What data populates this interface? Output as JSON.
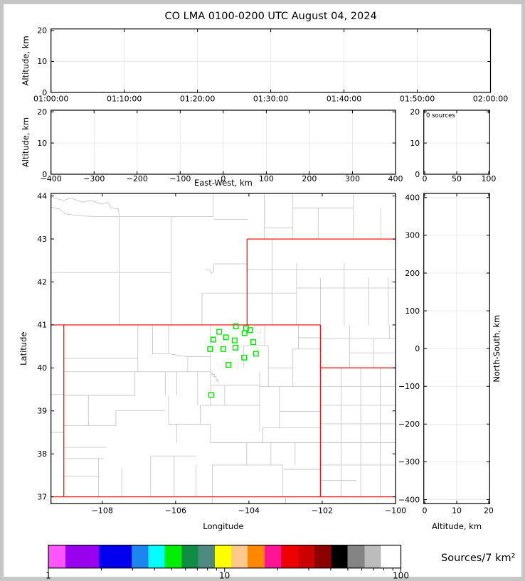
{
  "title": "CO LMA 0100-0200 UTC August 04, 2024",
  "colors": {
    "background": "#ffffff",
    "frame": "#c6c6c6",
    "axis": "#000000",
    "grid": "#e8e8e8",
    "county_line": "#c9c9c9",
    "state_line": "#ff1111",
    "marker": "#00e400"
  },
  "panels": {
    "time_height": {
      "ylabel": "Altitude, km",
      "xtick_vals": [
        0,
        1,
        2,
        3,
        4,
        5,
        6
      ],
      "xtick_labels": [
        "01:00:00",
        "01:10:00",
        "01:20:00",
        "01:30:00",
        "01:40:00",
        "01:50:00",
        "02:00:00"
      ],
      "xlim": [
        0,
        6
      ],
      "ytick_vals": [
        0,
        10,
        20
      ],
      "ytick_labels": [
        "0",
        "10",
        "20"
      ],
      "ylim": [
        0,
        20.5
      ],
      "xgrid": [
        1,
        2,
        3,
        4,
        5
      ],
      "ygrid": [
        10
      ]
    },
    "ew_height": {
      "xlabel": "East-West, km",
      "ylabel": "Altitude, km",
      "xtick_vals": [
        -400,
        -300,
        -200,
        -100,
        0,
        100,
        200,
        300,
        400
      ],
      "xtick_labels": [
        "−400",
        "−300",
        "−200",
        "−100",
        "0",
        "100",
        "200",
        "300",
        "400"
      ],
      "xlim": [
        -400,
        400
      ],
      "ytick_vals": [
        0,
        10,
        20
      ],
      "ytick_labels": [
        "0",
        "10",
        "20"
      ],
      "ylim": [
        0,
        20.5
      ],
      "xgrid": [
        -300,
        -200,
        -100,
        0,
        100,
        200,
        300
      ],
      "ygrid": [
        10
      ]
    },
    "hist": {
      "annotation": "0 sources",
      "xtick_vals": [
        0,
        50,
        100
      ],
      "xtick_labels": [
        "0",
        "50",
        "100"
      ],
      "xlim": [
        -1.5,
        101.5
      ],
      "ytick_vals": [
        0,
        10,
        20
      ],
      "ytick_labels": [
        "0",
        "10",
        "20"
      ],
      "ylim": [
        0,
        20.5
      ],
      "xgrid": [
        50
      ],
      "ygrid": [
        10
      ]
    },
    "map": {
      "xlabel": "Longitude",
      "ylabel": "Latitude",
      "xtick_vals": [
        -108,
        -106,
        -104,
        -102,
        -100
      ],
      "xtick_labels": [
        "−108",
        "−106",
        "−104",
        "−102",
        "−100"
      ],
      "xlim": [
        -109.4,
        -100.0
      ],
      "ytick_vals": [
        37,
        38,
        39,
        40,
        41,
        42,
        43,
        44
      ],
      "ytick_labels": [
        "37",
        "38",
        "39",
        "40",
        "41",
        "42",
        "43",
        "44"
      ],
      "ylim": [
        36.84,
        44.06
      ],
      "xgrid": [],
      "ygrid": []
    },
    "ns_height": {
      "xlabel": "Altitude, km",
      "ylabel": "North-South, km",
      "xtick_vals": [
        0,
        10,
        20
      ],
      "xtick_labels": [
        "0",
        "10",
        "20"
      ],
      "xlim": [
        -0.3,
        20.3
      ],
      "ytick_vals": [
        400,
        300,
        200,
        100,
        0,
        -100,
        -200,
        -300,
        -400
      ],
      "ytick_labels": [
        "400",
        "300",
        "200",
        "100",
        "0",
        "−100",
        "−200",
        "−300",
        "−400"
      ],
      "ylim": [
        -411,
        411
      ],
      "xgrid": [
        10
      ],
      "ygrid": [
        -400,
        -300,
        -200,
        -100,
        0,
        100,
        200,
        300,
        400
      ]
    }
  },
  "chart_data": {
    "type": "scatter",
    "title": "CO LMA 0100-0200 UTC August 04, 2024",
    "note": "VHF lightning source density map; all time/altitude panels are empty (0 sources in histogram panel)",
    "map_xlabel": "Longitude",
    "map_ylabel": "Latitude",
    "map_xlim": [
      -109.4,
      -100.0
    ],
    "map_ylim": [
      36.84,
      44.06
    ],
    "sources_lonlat": [
      [
        -104.36,
        40.97
      ],
      [
        -104.08,
        40.92
      ],
      [
        -103.97,
        40.88
      ],
      [
        -104.12,
        40.81
      ],
      [
        -104.81,
        40.84
      ],
      [
        -104.63,
        40.71
      ],
      [
        -104.97,
        40.66
      ],
      [
        -104.39,
        40.64
      ],
      [
        -103.88,
        40.6
      ],
      [
        -105.06,
        40.44
      ],
      [
        -104.7,
        40.44
      ],
      [
        -104.37,
        40.47
      ],
      [
        -103.81,
        40.33
      ],
      [
        -104.13,
        40.24
      ],
      [
        -104.56,
        40.07
      ],
      [
        -105.03,
        39.37
      ]
    ]
  },
  "map_lines": {
    "state": [
      [
        -109.4,
        41.0,
        -102.05,
        41.0
      ],
      [
        -109.05,
        41.0,
        -109.05,
        37.0
      ],
      [
        -109.4,
        37.0,
        -100.0,
        37.0
      ],
      [
        -102.05,
        41.0,
        -102.05,
        37.0
      ],
      [
        -104.05,
        41.0,
        -104.05,
        43.0
      ],
      [
        -104.05,
        43.0,
        -100.0,
        43.0
      ],
      [
        -102.05,
        40.0,
        -100.0,
        40.0
      ]
    ],
    "county": [
      [
        -109.4,
        43.97,
        -109.05,
        43.9,
        -108.85,
        43.95,
        -108.55,
        43.86,
        -108.3,
        43.9,
        -108.05,
        43.81,
        -107.85,
        43.85,
        -107.75,
        43.72,
        -107.56,
        43.7,
        -107.54,
        43.52
      ],
      [
        -109.4,
        43.74,
        -109.18,
        43.7,
        -109.0,
        43.58,
        -108.6,
        43.54,
        -108.15,
        43.52,
        -107.54,
        43.52
      ],
      [
        -107.54,
        41.0,
        -107.54,
        43.52
      ],
      [
        -109.4,
        42.22,
        -106.12,
        42.22
      ],
      [
        -106.12,
        41.0,
        -106.12,
        43.52
      ],
      [
        -107.54,
        43.52,
        -104.97,
        43.52
      ],
      [
        -104.97,
        43.52,
        -104.97,
        44.06
      ],
      [
        -104.97,
        43.46,
        -104.05,
        43.46
      ],
      [
        -105.28,
        41.0,
        -105.28,
        41.74
      ],
      [
        -105.28,
        41.74,
        -102.7,
        41.74
      ],
      [
        -105.2,
        42.28,
        -105.06,
        42.28,
        -105.04,
        42.2,
        -104.96,
        42.24,
        -104.96,
        42.42,
        -104.05,
        42.42
      ],
      [
        -103.58,
        43.0,
        -103.58,
        44.06
      ],
      [
        -102.8,
        43.0,
        -102.8,
        44.06
      ],
      [
        -103.58,
        43.26,
        -102.8,
        43.26
      ],
      [
        -102.11,
        43.0,
        -102.11,
        43.72
      ],
      [
        -102.8,
        43.72,
        -101.15,
        43.72
      ],
      [
        -101.15,
        43.0,
        -101.15,
        44.06
      ],
      [
        -100.4,
        43.0,
        -100.4,
        43.72
      ],
      [
        -103.37,
        41.0,
        -103.37,
        43.0
      ],
      [
        -102.7,
        41.0,
        -102.7,
        42.44
      ],
      [
        -102.05,
        41.0,
        -102.05,
        42.09
      ],
      [
        -101.4,
        41.0,
        -101.4,
        42.44
      ],
      [
        -100.73,
        41.0,
        -100.73,
        42.09
      ],
      [
        -100.2,
        41.0,
        -100.2,
        42.09
      ],
      [
        -104.05,
        42.3,
        -100.0,
        42.3
      ],
      [
        -102.7,
        41.86,
        -100.0,
        41.86
      ],
      [
        -102.05,
        40.68,
        -100.0,
        40.68
      ],
      [
        -101.25,
        40.0,
        -101.25,
        41.0
      ],
      [
        -100.6,
        40.0,
        -100.6,
        40.68
      ],
      [
        -101.25,
        40.35,
        -100.0,
        40.35
      ],
      [
        -100.17,
        40.68,
        -100.17,
        41.0
      ],
      [
        -102.05,
        39.57,
        -100.0,
        39.57
      ],
      [
        -102.05,
        39.13,
        -100.0,
        39.13
      ],
      [
        -102.05,
        38.7,
        -100.0,
        38.7
      ],
      [
        -102.05,
        38.26,
        -100.0,
        38.26
      ],
      [
        -102.05,
        37.74,
        -100.0,
        37.74
      ],
      [
        -102.05,
        37.38,
        -101.07,
        37.38
      ],
      [
        -101.48,
        37.0,
        -101.48,
        40.0
      ],
      [
        -100.95,
        37.0,
        -100.95,
        40.0
      ],
      [
        -100.42,
        37.0,
        -100.42,
        40.0
      ],
      [
        -109.4,
        38.5,
        -109.05,
        38.5
      ],
      [
        -109.4,
        39.38,
        -109.05,
        39.38
      ],
      [
        -105.0,
        36.84,
        -105.0,
        37.0
      ],
      [
        -103.0,
        36.84,
        -103.0,
        37.0
      ],
      [
        -107.03,
        39.91,
        -107.03,
        41.0
      ],
      [
        -109.05,
        40.22,
        -107.03,
        40.22
      ],
      [
        -109.05,
        39.91,
        -105.05,
        39.91
      ],
      [
        -106.63,
        40.33,
        -106.63,
        41.0
      ],
      [
        -106.19,
        40.33,
        -106.19,
        41.0
      ],
      [
        -106.63,
        40.33,
        -106.19,
        40.33
      ],
      [
        -106.19,
        40.33,
        -105.67,
        40.26
      ],
      [
        -105.67,
        40.26,
        -105.05,
        40.26
      ],
      [
        -105.67,
        39.91,
        -105.67,
        40.26
      ],
      [
        -105.05,
        39.91,
        -105.05,
        41.0
      ],
      [
        -109.05,
        39.36,
        -107.11,
        39.36
      ],
      [
        -107.11,
        39.36,
        -107.11,
        39.91
      ],
      [
        -106.28,
        39.36,
        -106.28,
        39.91
      ],
      [
        -105.97,
        39.36,
        -105.97,
        39.91
      ],
      [
        -105.4,
        39.13,
        -105.4,
        39.91
      ],
      [
        -105.05,
        39.13,
        -105.05,
        39.91
      ],
      [
        -105.05,
        39.91,
        -104.99,
        39.88,
        -105.02,
        39.84,
        -104.94,
        39.85,
        -104.96,
        39.79,
        -104.89,
        39.81,
        -104.91,
        39.76,
        -104.86,
        39.73,
        -104.89,
        39.69,
        -104.83,
        39.71,
        -104.85,
        39.65
      ],
      [
        -105.05,
        39.6,
        -103.71,
        39.6
      ],
      [
        -104.66,
        39.13,
        -104.66,
        39.6
      ],
      [
        -105.33,
        39.13,
        -103.71,
        39.13
      ],
      [
        -105.33,
        38.69,
        -105.33,
        39.13
      ],
      [
        -106.19,
        38.69,
        -106.19,
        39.36
      ],
      [
        -106.19,
        38.69,
        -105.05,
        38.69
      ],
      [
        -103.71,
        38.52,
        -103.71,
        39.91
      ],
      [
        -103.47,
        39.57,
        -103.47,
        40.52
      ],
      [
        -102.8,
        39.57,
        -102.8,
        40.44
      ],
      [
        -103.47,
        40.0,
        -102.8,
        40.0
      ],
      [
        -104.15,
        40.0,
        -104.15,
        40.52
      ],
      [
        -104.15,
        40.52,
        -103.47,
        40.52
      ],
      [
        -103.57,
        40.52,
        -103.57,
        41.0
      ],
      [
        -102.65,
        40.44,
        -102.65,
        41.0
      ],
      [
        -102.65,
        40.7,
        -102.05,
        40.7
      ],
      [
        -102.8,
        40.44,
        -102.05,
        40.44
      ],
      [
        -103.71,
        39.57,
        -102.05,
        39.57
      ],
      [
        -103.17,
        38.61,
        -103.17,
        39.57
      ],
      [
        -103.17,
        38.99,
        -102.05,
        38.99
      ],
      [
        -103.62,
        38.61,
        -102.05,
        38.61
      ],
      [
        -103.62,
        38.26,
        -103.62,
        38.61
      ],
      [
        -105.05,
        38.26,
        -102.05,
        38.26
      ],
      [
        -105.05,
        38.26,
        -105.05,
        38.69
      ],
      [
        -105.97,
        38.26,
        -105.97,
        38.69
      ],
      [
        -102.74,
        37.74,
        -102.74,
        38.26
      ],
      [
        -103.4,
        37.74,
        -103.4,
        38.26
      ],
      [
        -104.06,
        37.74,
        -104.06,
        38.26
      ],
      [
        -105.0,
        37.74,
        -103.08,
        37.74
      ],
      [
        -103.08,
        37.64,
        -102.05,
        37.64
      ],
      [
        -103.08,
        37.0,
        -103.08,
        37.74
      ],
      [
        -105.0,
        37.0,
        -105.0,
        37.74
      ],
      [
        -105.44,
        37.0,
        -105.44,
        37.74
      ],
      [
        -106.04,
        37.0,
        -106.04,
        37.95
      ],
      [
        -106.68,
        37.0,
        -106.68,
        37.95
      ],
      [
        -106.68,
        37.95,
        -105.44,
        37.95
      ],
      [
        -107.47,
        37.0,
        -107.47,
        37.66
      ],
      [
        -108.1,
        37.0,
        -108.1,
        37.89
      ],
      [
        -109.05,
        37.48,
        -108.1,
        37.48
      ],
      [
        -109.05,
        37.89,
        -107.97,
        37.89
      ],
      [
        -109.05,
        38.15,
        -107.89,
        38.15
      ],
      [
        -109.05,
        38.66,
        -107.63,
        38.66
      ],
      [
        -108.38,
        38.66,
        -108.38,
        39.36
      ],
      [
        -107.63,
        38.66,
        -107.63,
        39.01
      ],
      [
        -107.63,
        39.01,
        -106.28,
        39.01
      ]
    ]
  },
  "colorbar": {
    "label": "Sources/7 km²",
    "tick_labels": [
      "1",
      "10",
      "100"
    ],
    "tick_values": [
      1,
      10,
      100
    ],
    "minor_tick_values": [
      2,
      3,
      4,
      5,
      6,
      7,
      8,
      9,
      20,
      30,
      40,
      50,
      60,
      70,
      80,
      90
    ],
    "scale": "log",
    "segment_colors": [
      "#ff55ff",
      "#9900ee",
      "#0000ee",
      "#1c86ee",
      "#00ffff",
      "#00ee00",
      "#108c44",
      "#4f8a80",
      "#ffff00",
      "#ffc88c",
      "#ff8800",
      "#ff1493",
      "#ee0000",
      "#cd0000",
      "#8b0000",
      "#000000",
      "#848484",
      "#bcbcbc",
      "#ffffff"
    ],
    "segment_widths": [
      24,
      47,
      46,
      23.5,
      23,
      24,
      23,
      23.5,
      23,
      23,
      24,
      23,
      24,
      23,
      23.5,
      23,
      24,
      23,
      28
    ]
  }
}
